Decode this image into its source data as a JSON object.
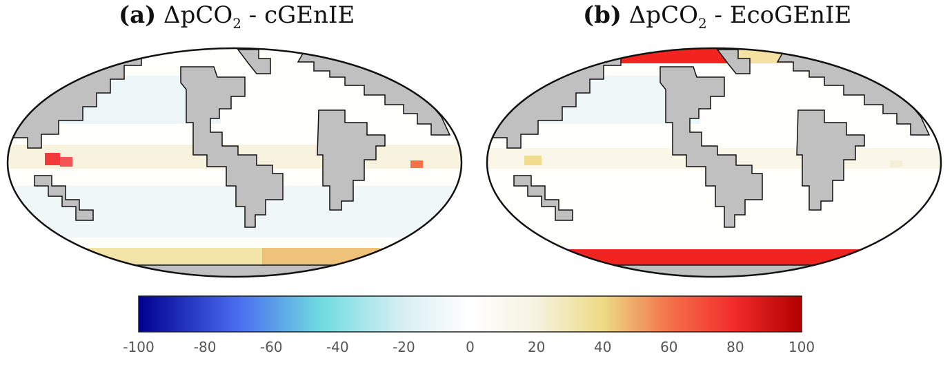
{
  "panels": [
    {
      "tag": "(a)",
      "symbol": "ΔpCO",
      "subscript": "2",
      "suffix": " - cGEnIE"
    },
    {
      "tag": "(b)",
      "symbol": "ΔpCO",
      "subscript": "2",
      "suffix": " - EcoGEnIE"
    }
  ],
  "colorbar": {
    "min": -100,
    "max": 100,
    "ticks": [
      "-100",
      "-80",
      "-60",
      "-40",
      "-20",
      "0",
      "20",
      "40",
      "60",
      "80",
      "100"
    ],
    "stops": [
      {
        "value": -100,
        "color": "#00008f"
      },
      {
        "value": -70,
        "color": "#4a6cf0"
      },
      {
        "value": -45,
        "color": "#6fdce0"
      },
      {
        "value": -20,
        "color": "#d9eff2"
      },
      {
        "value": 0,
        "color": "#ffffff"
      },
      {
        "value": 20,
        "color": "#f6f2df"
      },
      {
        "value": 40,
        "color": "#ecdb85"
      },
      {
        "value": 60,
        "color": "#f4724a"
      },
      {
        "value": 80,
        "color": "#f22a2a"
      },
      {
        "value": 100,
        "color": "#b10000"
      }
    ]
  },
  "colors": {
    "land": "#c0c0c0",
    "coast": "#111111",
    "ocean": "#fefefa"
  }
}
